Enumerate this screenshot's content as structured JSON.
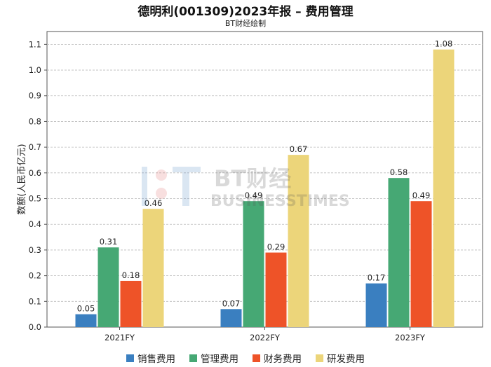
{
  "chart_data": {
    "type": "bar",
    "title": "德明利(001309)2023年报 – 费用管理",
    "subtitle": "BT财经绘制",
    "xlabel": "",
    "ylabel": "数额(人民币亿元)",
    "categories": [
      "2021FY",
      "2022FY",
      "2023FY"
    ],
    "ylim": [
      0,
      1.15
    ],
    "yticks": [
      0.0,
      0.1,
      0.2,
      0.3,
      0.4,
      0.5,
      0.6,
      0.7,
      0.8,
      0.9,
      1.0,
      1.1
    ],
    "ytick_labels": [
      "0.0",
      "0.1",
      "0.2",
      "0.3",
      "0.4",
      "0.5",
      "0.6",
      "0.7",
      "0.8",
      "0.9",
      "1.0",
      "1.1"
    ],
    "grid": true,
    "legend_position": "bottom",
    "series": [
      {
        "name": "销售费用",
        "color": "#3a7fc0",
        "values": [
          0.05,
          0.07,
          0.17
        ],
        "labels": [
          "0.05",
          "0.07",
          "0.17"
        ]
      },
      {
        "name": "管理费用",
        "color": "#46a874",
        "values": [
          0.31,
          0.49,
          0.58
        ],
        "labels": [
          "0.31",
          "0.49",
          "0.58"
        ]
      },
      {
        "name": "财务费用",
        "color": "#ee5328",
        "values": [
          0.18,
          0.29,
          0.49
        ],
        "labels": [
          "0.18",
          "0.29",
          "0.49"
        ]
      },
      {
        "name": "研发费用",
        "color": "#ecd57a",
        "values": [
          0.46,
          0.67,
          1.08
        ],
        "labels": [
          "0.46",
          "0.67",
          "1.08"
        ]
      }
    ]
  },
  "watermark": {
    "main": "BT财经",
    "sub": "BUSINESSTIMES"
  }
}
